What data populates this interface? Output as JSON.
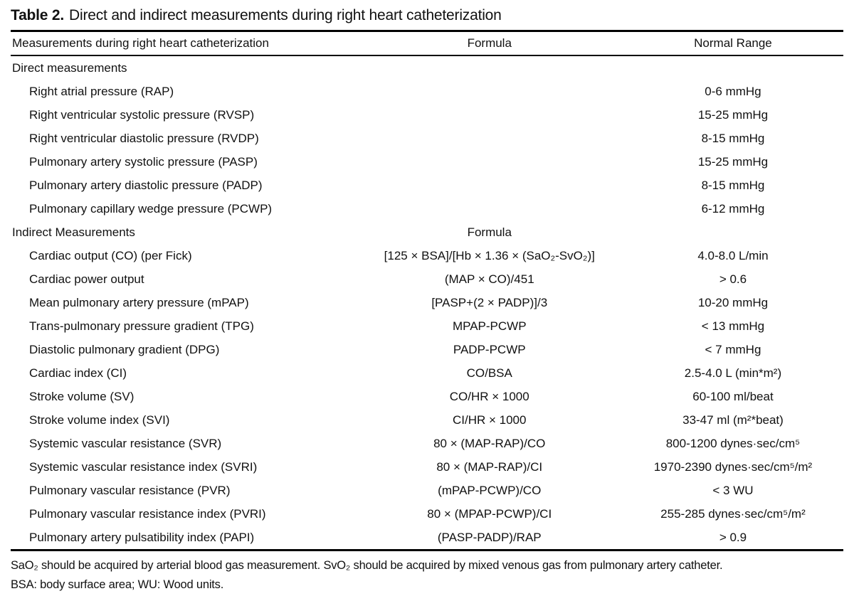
{
  "title": {
    "label": "Table 2.",
    "text": "Direct and indirect measurements during right heart catheterization"
  },
  "table": {
    "headers": {
      "measurements": "Measurements during right heart catheterization",
      "formula": "Formula",
      "normal_range": "Normal Range"
    },
    "rows": [
      {
        "label": "Direct measurements",
        "formula": "",
        "range": "",
        "section": true
      },
      {
        "label": "Right atrial pressure (RAP)",
        "formula": "",
        "range": "0-6 mmHg",
        "section": false
      },
      {
        "label": "Right ventricular systolic pressure (RVSP)",
        "formula": "",
        "range": "15-25 mmHg",
        "section": false
      },
      {
        "label": "Right ventricular diastolic pressure (RVDP)",
        "formula": "",
        "range": "8-15 mmHg",
        "section": false
      },
      {
        "label": "Pulmonary artery systolic pressure (PASP)",
        "formula": "",
        "range": "15-25 mmHg",
        "section": false
      },
      {
        "label": "Pulmonary artery diastolic pressure (PADP)",
        "formula": "",
        "range": "8-15 mmHg",
        "section": false
      },
      {
        "label": "Pulmonary capillary wedge pressure (PCWP)",
        "formula": "",
        "range": "6-12 mmHg",
        "section": false
      },
      {
        "label": "Indirect Measurements",
        "formula": "Formula",
        "range": "",
        "section": true
      },
      {
        "label": "Cardiac output (CO) (per Fick)",
        "formula": "[125 × BSA]/[Hb × 1.36 × (SaO₂-SvO₂)]",
        "range": "4.0-8.0 L/min",
        "section": false
      },
      {
        "label": "Cardiac power output",
        "formula": "(MAP × CO)/451",
        "range": "> 0.6",
        "section": false
      },
      {
        "label": "Mean pulmonary artery pressure (mPAP)",
        "formula": "[PASP+(2 × PADP)]/3",
        "range": "10-20 mmHg",
        "section": false
      },
      {
        "label": "Trans-pulmonary pressure gradient (TPG)",
        "formula": "MPAP-PCWP",
        "range": "< 13 mmHg",
        "section": false
      },
      {
        "label": "Diastolic pulmonary gradient (DPG)",
        "formula": "PADP-PCWP",
        "range": "< 7 mmHg",
        "section": false
      },
      {
        "label": "Cardiac index (CI)",
        "formula": "CO/BSA",
        "range": "2.5-4.0 L (min*m²)",
        "section": false
      },
      {
        "label": "Stroke volume (SV)",
        "formula": "CO/HR × 1000",
        "range": "60-100 ml/beat",
        "section": false
      },
      {
        "label": "Stroke volume index (SVI)",
        "formula": "CI/HR × 1000",
        "range": "33-47 ml (m²*beat)",
        "section": false
      },
      {
        "label": "Systemic vascular resistance (SVR)",
        "formula": "80 × (MAP-RAP)/CO",
        "range": "800-1200 dynes·sec/cm⁵",
        "section": false
      },
      {
        "label": "Systemic vascular resistance index (SVRI)",
        "formula": "80 × (MAP-RAP)/CI",
        "range": "1970-2390 dynes·sec/cm⁵/m²",
        "section": false
      },
      {
        "label": "Pulmonary vascular resistance (PVR)",
        "formula": "(mPAP-PCWP)/CO",
        "range": "< 3 WU",
        "section": false
      },
      {
        "label": "Pulmonary vascular resistance index (PVRI)",
        "formula": "80 × (MPAP-PCWP)/CI",
        "range": "255-285 dynes·sec/cm⁵/m²",
        "section": false
      },
      {
        "label": "Pulmonary artery pulsatibility index (PAPI)",
        "formula": "(PASP-PADP)/RAP",
        "range": "> 0.9",
        "section": false
      }
    ]
  },
  "footnotes": [
    "SaO₂ should be acquired by arterial blood gas measurement. SvO₂ should be acquired by mixed venous gas from pulmonary artery catheter.",
    "BSA: body surface area; WU: Wood units."
  ],
  "colors": {
    "text": "#111111",
    "background": "#ffffff",
    "rule": "#000000"
  }
}
